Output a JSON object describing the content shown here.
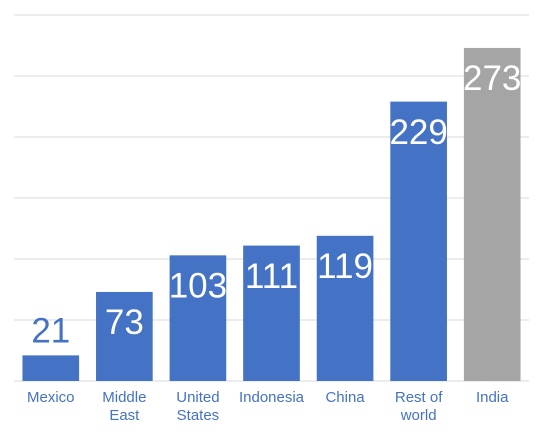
{
  "chart_data": {
    "type": "bar",
    "categories": [
      "Mexico",
      "Middle East",
      "United States",
      "Indonesia",
      "China",
      "Rest of world",
      "India"
    ],
    "values": [
      21,
      73,
      103,
      111,
      119,
      229,
      273
    ],
    "colors": [
      "#4472c4",
      "#4472c4",
      "#4472c4",
      "#4472c4",
      "#4472c4",
      "#4472c4",
      "#a5a5a5"
    ],
    "ylim": [
      0,
      300
    ],
    "yticks": [
      0,
      50,
      100,
      150,
      200,
      250,
      300
    ],
    "grid": true
  }
}
